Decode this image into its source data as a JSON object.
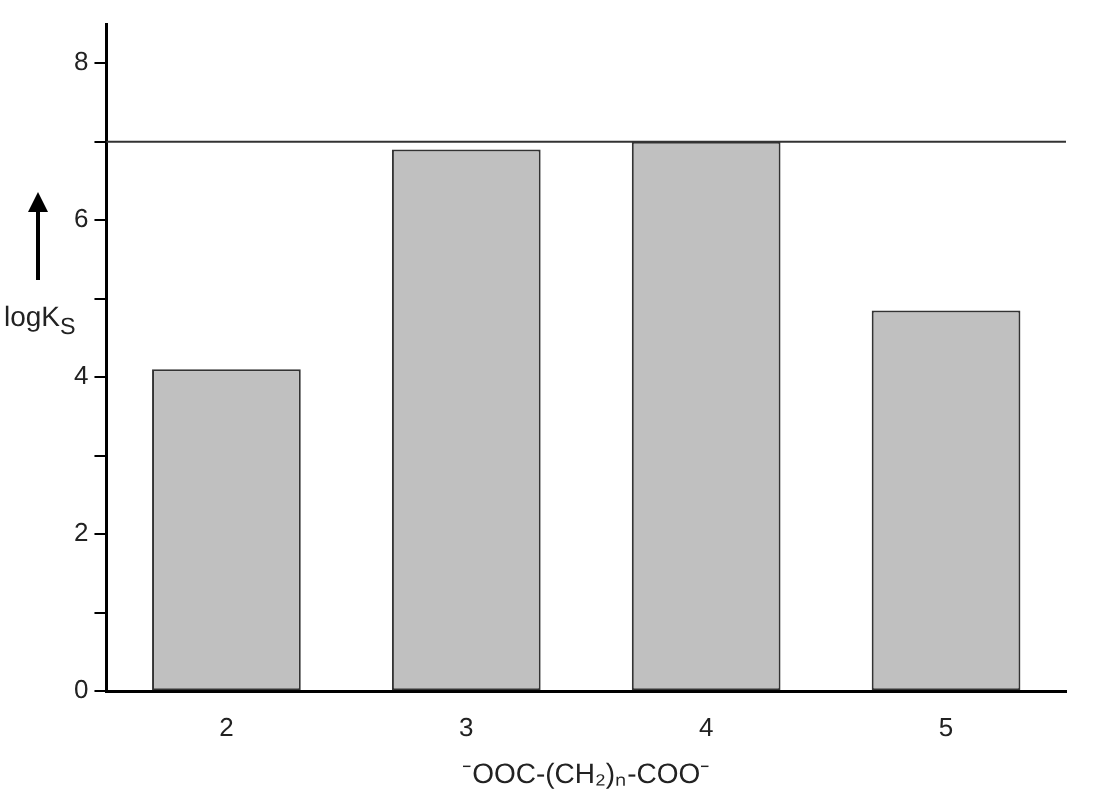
{
  "chart_data": {
    "type": "bar",
    "xlabel": "⁻OOC-(CH₂)ₙ-COO⁻",
    "ylabel": "logK$_{S}$",
    "categories": [
      "2",
      "3",
      "4",
      "5"
    ],
    "values": [
      4.1,
      6.9,
      7.0,
      4.85
    ],
    "color": "#c0c0c0",
    "ylim": [
      0,
      8.5
    ],
    "yticks": [
      0,
      {
        "value": 1,
        "label": null
      },
      2,
      {
        "value": 3,
        "label": null
      },
      4,
      {
        "value": 5,
        "label": null
      },
      6,
      {
        "value": 7,
        "label": null
      },
      8
    ],
    "ref_lines": [
      {
        "axis": "y",
        "value": 7,
        "color": "#333333"
      }
    ],
    "grid": false,
    "legend": false
  }
}
